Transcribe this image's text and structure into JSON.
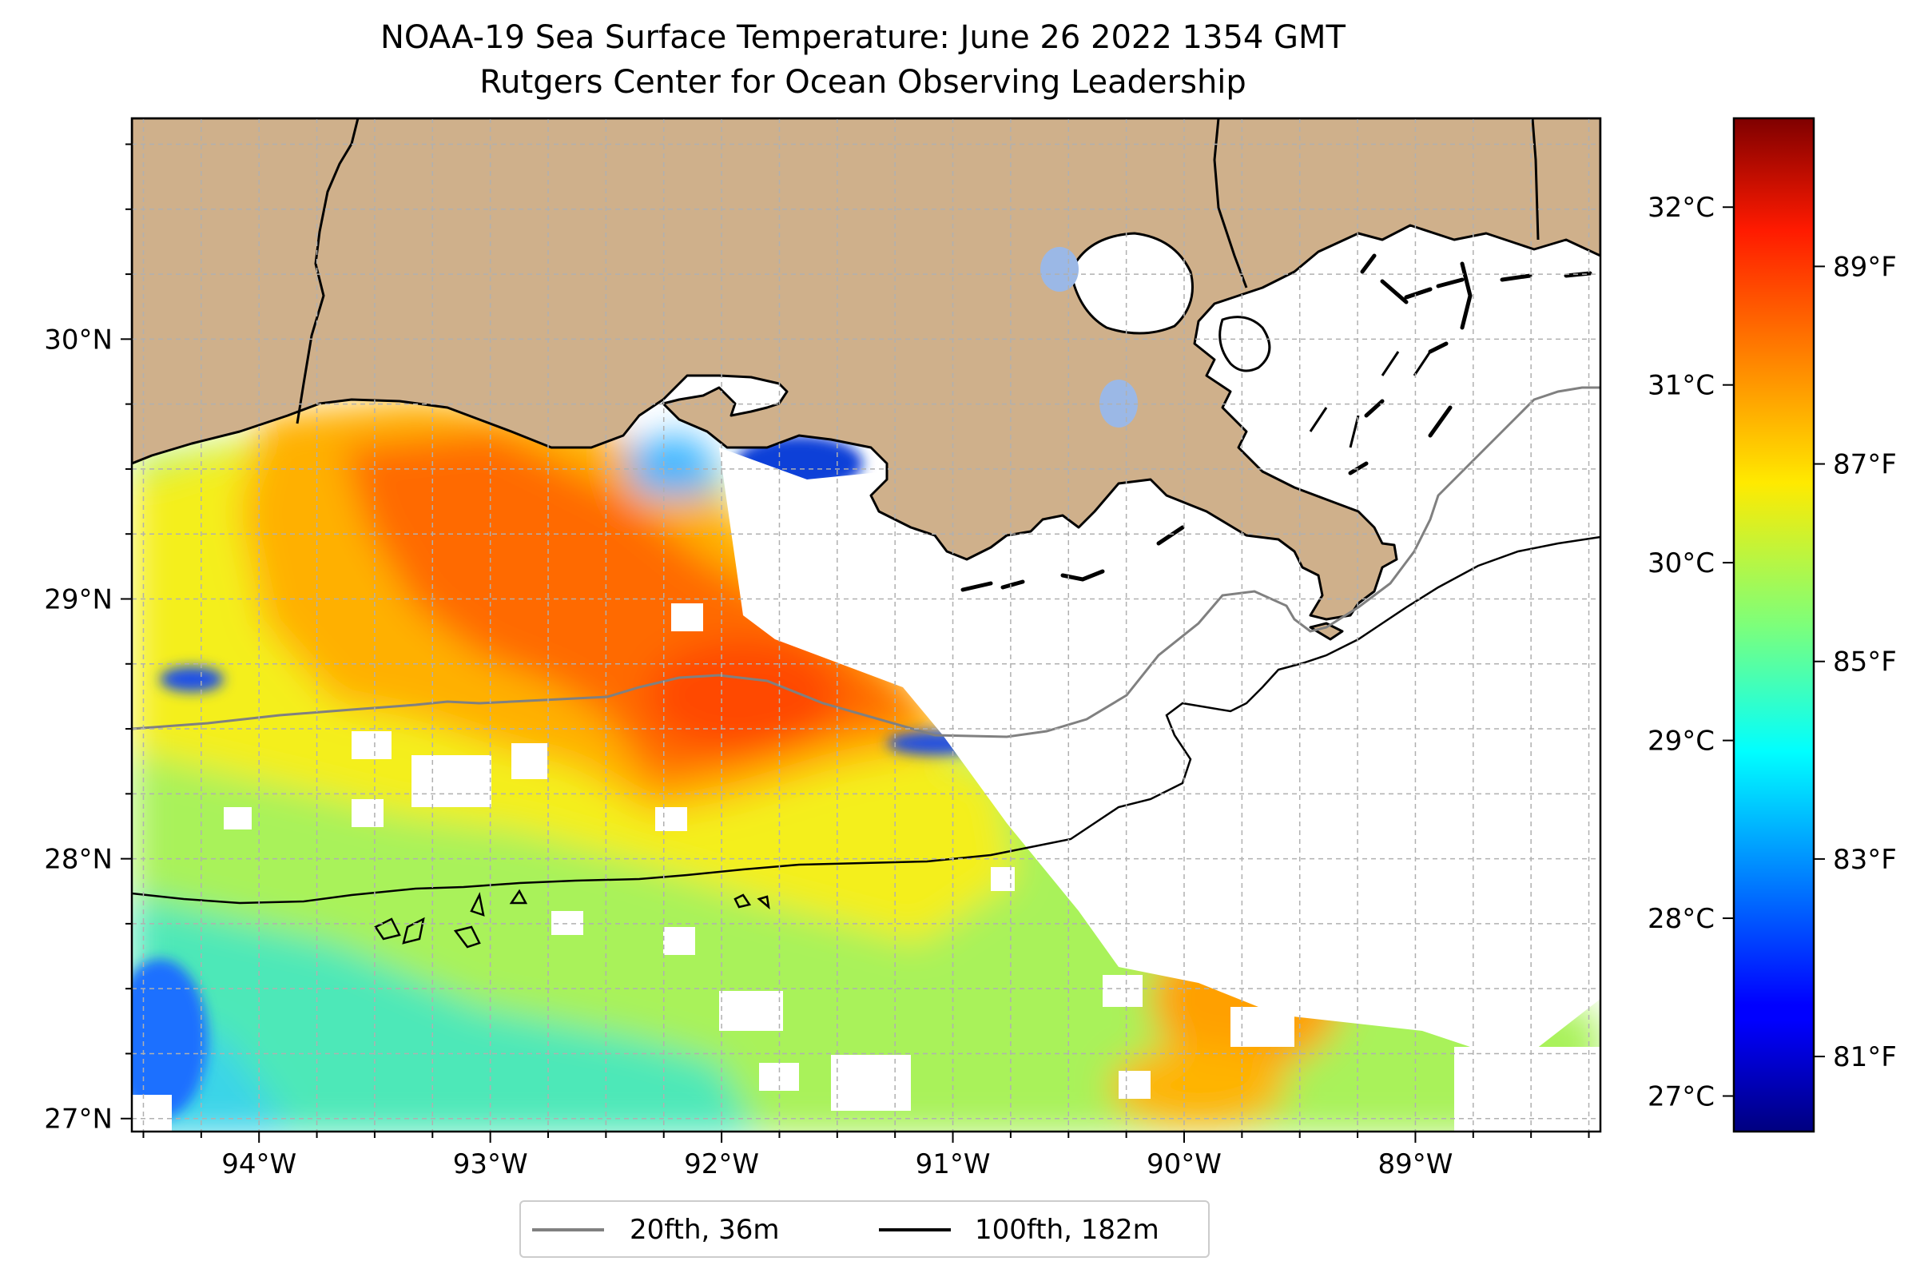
{
  "title": "NOAA-19 Sea Surface Temperature: June 26 2022 1354 GMT",
  "subtitle": "Rutgers Center for Ocean Observing Leadership",
  "map": {
    "extent": {
      "lon_min": -94.55,
      "lon_max": -88.2,
      "lat_min": 26.95,
      "lat_max": 30.85
    },
    "lon_ticks": [
      {
        "value": -94,
        "label": "94°W"
      },
      {
        "value": -93,
        "label": "93°W"
      },
      {
        "value": -92,
        "label": "92°W"
      },
      {
        "value": -91,
        "label": "91°W"
      },
      {
        "value": -90,
        "label": "90°W"
      },
      {
        "value": -89,
        "label": "89°W"
      }
    ],
    "lat_ticks": [
      {
        "value": 27,
        "label": "27°N"
      },
      {
        "value": 28,
        "label": "28°N"
      },
      {
        "value": 29,
        "label": "29°N"
      },
      {
        "value": 30,
        "label": "30°N"
      }
    ],
    "gridlines": true,
    "land_color": "#cfb08b",
    "ocean_nodata_color": "#ffffff",
    "lake_color": "#9bb8e6"
  },
  "colorbar": {
    "colormap": "jet",
    "celsius_ticks": [
      {
        "value": 27,
        "label": "27°C"
      },
      {
        "value": 28,
        "label": "28°C"
      },
      {
        "value": 29,
        "label": "29°C"
      },
      {
        "value": 30,
        "label": "30°C"
      },
      {
        "value": 31,
        "label": "31°C"
      },
      {
        "value": 32,
        "label": "32°C"
      }
    ],
    "fahrenheit_ticks": [
      {
        "value": 81,
        "label": "81°F"
      },
      {
        "value": 83,
        "label": "83°F"
      },
      {
        "value": 85,
        "label": "85°F"
      },
      {
        "value": 87,
        "label": "87°F"
      },
      {
        "value": 89,
        "label": "89°F"
      }
    ]
  },
  "legend": {
    "placement": "bottom-center",
    "items": [
      {
        "label": "20fth, 36m",
        "color": "#808080"
      },
      {
        "label": "100fth, 182m",
        "color": "#000000"
      }
    ]
  }
}
